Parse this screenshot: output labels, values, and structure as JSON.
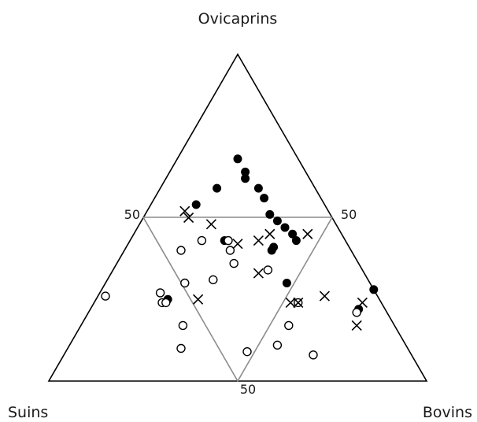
{
  "chart_data": {
    "type": "scatter",
    "subtype": "ternary",
    "axes": {
      "top": "Ovicaprins",
      "left": "Suins",
      "right": "Bovins"
    },
    "midline_label": "50",
    "grid": "inner 50% triangle",
    "legend": "none",
    "series": [
      {
        "marker": "filled-circle",
        "points": [
          {
            "Ovicaprins": 68,
            "Suins": 16,
            "Bovins": 16
          },
          {
            "Ovicaprins": 64,
            "Suins": 16,
            "Bovins": 20
          },
          {
            "Ovicaprins": 62,
            "Suins": 17,
            "Bovins": 21
          },
          {
            "Ovicaprins": 59,
            "Suins": 26,
            "Bovins": 15
          },
          {
            "Ovicaprins": 59,
            "Suins": 15,
            "Bovins": 26
          },
          {
            "Ovicaprins": 56,
            "Suins": 15,
            "Bovins": 29
          },
          {
            "Ovicaprins": 54,
            "Suins": 34,
            "Bovins": 12
          },
          {
            "Ovicaprins": 51,
            "Suins": 16,
            "Bovins": 33
          },
          {
            "Ovicaprins": 49,
            "Suins": 15,
            "Bovins": 36
          },
          {
            "Ovicaprins": 47,
            "Suins": 14,
            "Bovins": 39
          },
          {
            "Ovicaprins": 45,
            "Suins": 13,
            "Bovins": 42
          },
          {
            "Ovicaprins": 43,
            "Suins": 13,
            "Bovins": 44
          },
          {
            "Ovicaprins": 43,
            "Suins": 32,
            "Bovins": 25
          },
          {
            "Ovicaprins": 41,
            "Suins": 20,
            "Bovins": 39
          },
          {
            "Ovicaprins": 40,
            "Suins": 21,
            "Bovins": 39
          },
          {
            "Ovicaprins": 30,
            "Suins": 22,
            "Bovins": 48
          },
          {
            "Ovicaprins": 28,
            "Suins": 0,
            "Bovins": 72
          },
          {
            "Ovicaprins": 25,
            "Suins": 56,
            "Bovins": 19
          },
          {
            "Ovicaprins": 22,
            "Suins": 7,
            "Bovins": 71
          }
        ]
      },
      {
        "marker": "open-circle",
        "points": [
          {
            "Ovicaprins": 43,
            "Suins": 31,
            "Bovins": 26
          },
          {
            "Ovicaprins": 43,
            "Suins": 38,
            "Bovins": 19
          },
          {
            "Ovicaprins": 40,
            "Suins": 32,
            "Bovins": 28
          },
          {
            "Ovicaprins": 40,
            "Suins": 45,
            "Bovins": 15
          },
          {
            "Ovicaprins": 36,
            "Suins": 33,
            "Bovins": 31
          },
          {
            "Ovicaprins": 34,
            "Suins": 25,
            "Bovins": 41
          },
          {
            "Ovicaprins": 31,
            "Suins": 41,
            "Bovins": 28
          },
          {
            "Ovicaprins": 30,
            "Suins": 49,
            "Bovins": 21
          },
          {
            "Ovicaprins": 26,
            "Suins": 72,
            "Bovins": 2
          },
          {
            "Ovicaprins": 27,
            "Suins": 57,
            "Bovins": 16
          },
          {
            "Ovicaprins": 24,
            "Suins": 58,
            "Bovins": 18
          },
          {
            "Ovicaprins": 24,
            "Suins": 57,
            "Bovins": 19
          },
          {
            "Ovicaprins": 24,
            "Suins": 22,
            "Bovins": 54
          },
          {
            "Ovicaprins": 21,
            "Suins": 8,
            "Bovins": 71
          },
          {
            "Ovicaprins": 17,
            "Suins": 28,
            "Bovins": 55
          },
          {
            "Ovicaprins": 17,
            "Suins": 56,
            "Bovins": 27
          },
          {
            "Ovicaprins": 11,
            "Suins": 34,
            "Bovins": 55
          },
          {
            "Ovicaprins": 9,
            "Suins": 43,
            "Bovins": 48
          },
          {
            "Ovicaprins": 10,
            "Suins": 60,
            "Bovins": 30
          },
          {
            "Ovicaprins": 8,
            "Suins": 26,
            "Bovins": 66
          }
        ]
      },
      {
        "marker": "cross",
        "points": [
          {
            "Ovicaprins": 52,
            "Suins": 38,
            "Bovins": 10
          },
          {
            "Ovicaprins": 50,
            "Suins": 38,
            "Bovins": 12
          },
          {
            "Ovicaprins": 48,
            "Suins": 33,
            "Bovins": 19
          },
          {
            "Ovicaprins": 45,
            "Suins": 9,
            "Bovins": 46
          },
          {
            "Ovicaprins": 45,
            "Suins": 19,
            "Bovins": 36
          },
          {
            "Ovicaprins": 43,
            "Suins": 23,
            "Bovins": 34
          },
          {
            "Ovicaprins": 42,
            "Suins": 29,
            "Bovins": 29
          },
          {
            "Ovicaprins": 33,
            "Suins": 28,
            "Bovins": 39
          },
          {
            "Ovicaprins": 26,
            "Suins": 14,
            "Bovins": 60
          },
          {
            "Ovicaprins": 25,
            "Suins": 48,
            "Bovins": 27
          },
          {
            "Ovicaprins": 24,
            "Suins": 5,
            "Bovins": 71
          },
          {
            "Ovicaprins": 24,
            "Suins": 22,
            "Bovins": 54
          },
          {
            "Ovicaprins": 24,
            "Suins": 24,
            "Bovins": 52
          },
          {
            "Ovicaprins": 17,
            "Suins": 10,
            "Bovins": 73
          }
        ]
      }
    ]
  }
}
